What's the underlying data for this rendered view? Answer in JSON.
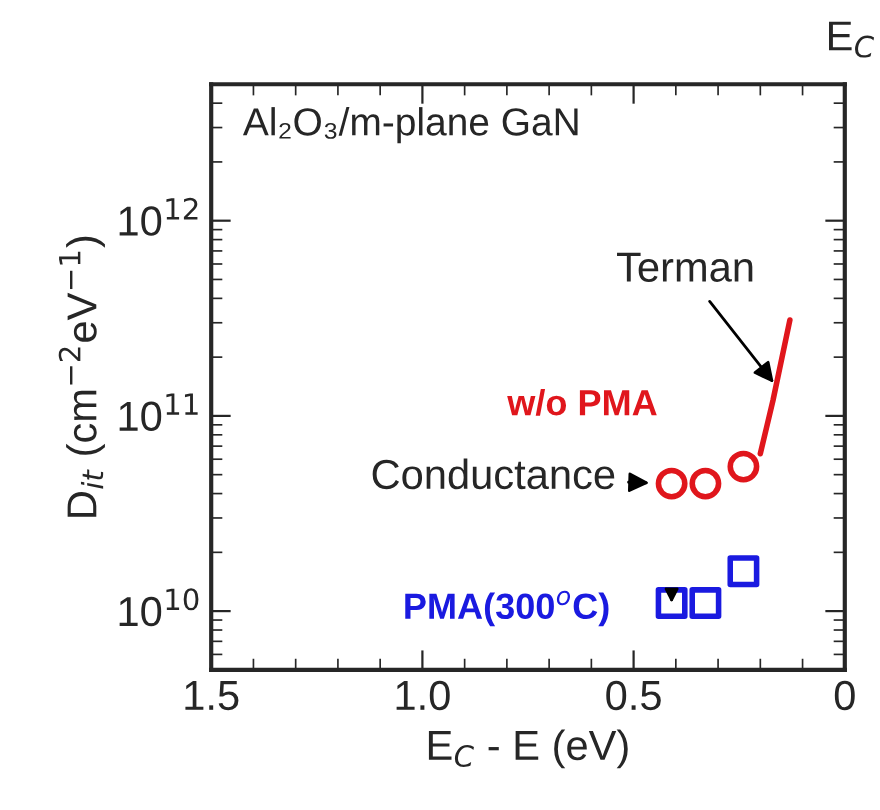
{
  "chart_data": {
    "type": "scatter",
    "xlabel": "E$_{C}$ - E (eV)",
    "ylabel": "D$_{it}$ (cm$^{−2}$eV$^{−1}$)",
    "log": "y",
    "xlim": [
      1.5,
      0
    ],
    "xticks": [
      {
        "value": 1.5,
        "label": "1.5"
      },
      {
        "value": 1.0,
        "label": "1.0"
      },
      {
        "value": 0.5,
        "label": "0.5"
      },
      {
        "value": 0,
        "label": "0"
      }
    ],
    "ylim": [
      5000000000.0,
      5000000000000.0
    ],
    "yticks": [
      {
        "value": 10000000000.0,
        "label": "10$^{10}$"
      },
      {
        "value": 100000000000.0,
        "label": "10$^{11}$"
      },
      {
        "value": 1000000000000.0,
        "label": "10$^{12}$"
      }
    ],
    "grid": false,
    "legend": false,
    "series": [
      {
        "name": "w/o PMA",
        "marker": "circle",
        "color": "#e0161c",
        "x": [
          0.41,
          0.33,
          0.24
        ],
        "values": [
          45000000000.0,
          45000000000.0,
          55000000000.0
        ]
      },
      {
        "type": "line",
        "marker": "none",
        "color": "#e0161c",
        "x": [
          0.2,
          0.17,
          0.13
        ],
        "values": [
          64000000000.0,
          120000000000.0,
          310000000000.0
        ]
      },
      {
        "name": "PMA(300$^{o}$C)",
        "marker": "square",
        "color": "#1a1ae0",
        "x": [
          0.41,
          0.33,
          0.24
        ],
        "values": [
          11000000000.0,
          11000000000.0,
          16000000000.0
        ]
      }
    ],
    "annotations": [
      "E$_{C}$",
      "Al₂O₃/m-plane GaN",
      {
        "text": "Terman",
        "x": 0.16,
        "y": 140000000000.0
      },
      {
        "text": "Conductance",
        "x": 0.41,
        "y": 45000000000.0
      }
    ]
  }
}
